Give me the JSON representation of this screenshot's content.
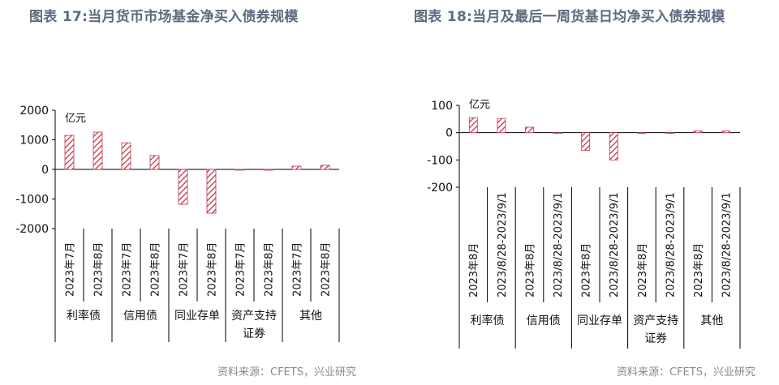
{
  "left_title": "图表 17:当月货币市场基金净买入债券规模",
  "right_title": "图表 18:当月及最后一周货基日均净买入债券规模",
  "left_source": "资料来源：CFETS，兴业研究",
  "right_source": "资料来源：CFETS，兴业研究",
  "bar_color": "#c0364b",
  "chart_data": [
    {
      "type": "bar",
      "unit": "亿元",
      "ylim": [
        -2000,
        2000
      ],
      "yticks": [
        "2000",
        "1000",
        "0",
        "-1000",
        "-2000"
      ],
      "ytick_values": [
        2000,
        1000,
        0,
        -1000,
        -2000
      ],
      "categories": [
        "2023年7月",
        "2023年8月",
        "2023年7月",
        "2023年8月",
        "2023年7月",
        "2023年8月",
        "2023年7月",
        "2023年8月",
        "2023年7月",
        "2023年8月"
      ],
      "groups": [
        "利率债",
        "信用债",
        "同业存单",
        "资产支持证券",
        "其他"
      ],
      "values": [
        1150,
        1260,
        900,
        470,
        -1180,
        -1480,
        0,
        -20,
        110,
        140
      ]
    },
    {
      "type": "bar",
      "unit": "亿元",
      "ylim": [
        -200,
        100
      ],
      "yticks": [
        "100",
        "0",
        "-100",
        "-200"
      ],
      "ytick_values": [
        100,
        0,
        -100,
        -200
      ],
      "categories": [
        "2023年8月",
        "2023/8/28-2023/9/1",
        "2023年8月",
        "2023/8/28-2023/9/1",
        "2023年8月",
        "2023/8/28-2023/9/1",
        "2023年8月",
        "2023/8/28-2023/9/1",
        "2023年8月",
        "2023/8/28-2023/9/1"
      ],
      "groups": [
        "利率债",
        "信用债",
        "同业存单",
        "资产支持证券",
        "其他"
      ],
      "values": [
        55,
        52,
        20,
        -2,
        -65,
        -100,
        -2,
        0,
        6,
        6
      ]
    }
  ]
}
